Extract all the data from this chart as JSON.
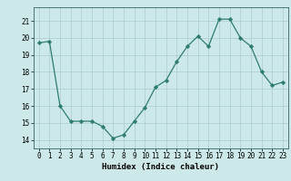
{
  "x": [
    0,
    1,
    2,
    3,
    4,
    5,
    6,
    7,
    8,
    9,
    10,
    11,
    12,
    13,
    14,
    15,
    16,
    17,
    18,
    19,
    20,
    21,
    22,
    23
  ],
  "y": [
    19.7,
    19.8,
    16.0,
    15.1,
    15.1,
    15.1,
    14.8,
    14.1,
    14.3,
    15.1,
    15.9,
    17.1,
    17.5,
    18.6,
    19.5,
    20.1,
    19.5,
    21.1,
    21.1,
    20.0,
    19.5,
    18.0,
    17.2,
    17.4
  ],
  "xlabel": "Humidex (Indice chaleur)",
  "xlim": [
    -0.5,
    23.5
  ],
  "ylim": [
    13.5,
    21.8
  ],
  "yticks": [
    14,
    15,
    16,
    17,
    18,
    19,
    20,
    21
  ],
  "xticks": [
    0,
    1,
    2,
    3,
    4,
    5,
    6,
    7,
    8,
    9,
    10,
    11,
    12,
    13,
    14,
    15,
    16,
    17,
    18,
    19,
    20,
    21,
    22,
    23
  ],
  "line_color": "#2e7d6e",
  "marker_color": "#2e7d6e",
  "bg_color": "#cce8e8",
  "grid_color": "#aacccc",
  "label_fontsize": 6.5,
  "tick_fontsize": 5.5
}
